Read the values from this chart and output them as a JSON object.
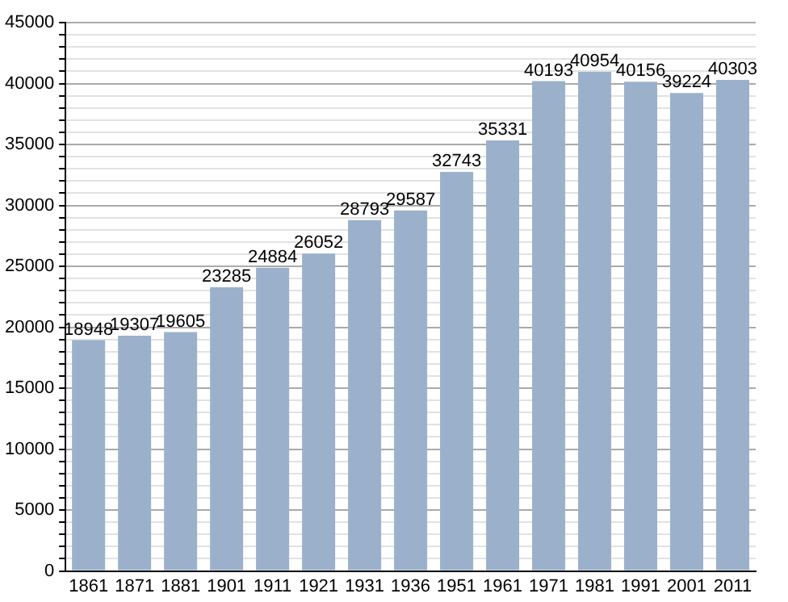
{
  "chart_data": {
    "type": "bar",
    "categories": [
      "1861",
      "1871",
      "1881",
      "1901",
      "1911",
      "1921",
      "1931",
      "1936",
      "1951",
      "1961",
      "1971",
      "1981",
      "1991",
      "2001",
      "2011"
    ],
    "values": [
      18948,
      19307,
      19605,
      23285,
      24884,
      26052,
      28793,
      29587,
      32743,
      35331,
      40193,
      40954,
      40156,
      39224,
      40303
    ],
    "color": "#9bb1cb",
    "ylim": [
      0,
      45000
    ],
    "yticks": [
      0,
      {
        "value": 1000,
        "label": null
      },
      {
        "value": 2000,
        "label": null
      },
      {
        "value": 3000,
        "label": null
      },
      {
        "value": 4000,
        "label": null
      },
      5000,
      {
        "value": 6000,
        "label": null
      },
      {
        "value": 7000,
        "label": null
      },
      {
        "value": 8000,
        "label": null
      },
      {
        "value": 9000,
        "label": null
      },
      10000,
      {
        "value": 11000,
        "label": null
      },
      {
        "value": 12000,
        "label": null
      },
      {
        "value": 13000,
        "label": null
      },
      {
        "value": 14000,
        "label": null
      },
      15000,
      {
        "value": 16000,
        "label": null
      },
      {
        "value": 17000,
        "label": null
      },
      {
        "value": 18000,
        "label": null
      },
      {
        "value": 19000,
        "label": null
      },
      20000,
      {
        "value": 21000,
        "label": null
      },
      {
        "value": 22000,
        "label": null
      },
      {
        "value": 23000,
        "label": null
      },
      {
        "value": 24000,
        "label": null
      },
      25000,
      {
        "value": 26000,
        "label": null
      },
      {
        "value": 27000,
        "label": null
      },
      {
        "value": 28000,
        "label": null
      },
      {
        "value": 29000,
        "label": null
      },
      30000,
      {
        "value": 31000,
        "label": null
      },
      {
        "value": 32000,
        "label": null
      },
      {
        "value": 33000,
        "label": null
      },
      {
        "value": 34000,
        "label": null
      },
      35000,
      {
        "value": 36000,
        "label": null
      },
      {
        "value": 37000,
        "label": null
      },
      {
        "value": 38000,
        "label": null
      },
      {
        "value": 39000,
        "label": null
      },
      40000,
      {
        "value": 41000,
        "label": null
      },
      {
        "value": 42000,
        "label": null
      },
      {
        "value": 43000,
        "label": null
      },
      {
        "value": 44000,
        "label": null
      },
      45000
    ],
    "grid": "y",
    "data_labels": true,
    "legend": false
  }
}
